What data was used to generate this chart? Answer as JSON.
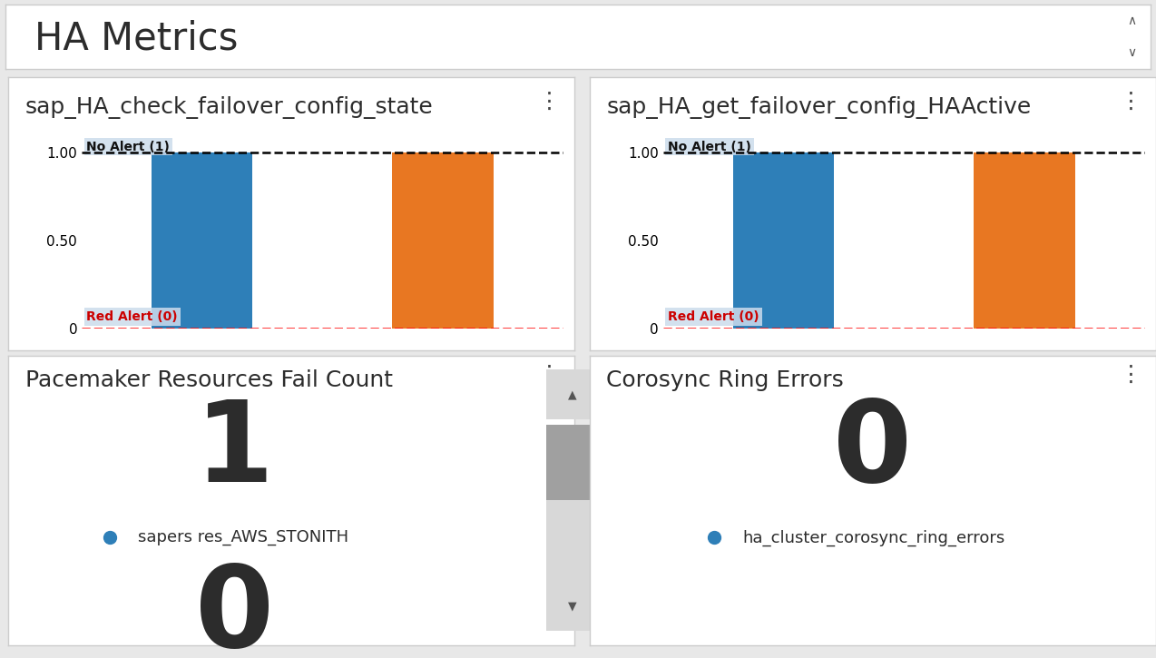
{
  "title": "HA Metrics",
  "title_fontsize": 30,
  "title_color": "#2c2c2c",
  "background_color": "#e8e8e8",
  "panel_background": "#ffffff",
  "panel1_title": "sap_HA_check_failover_config_state",
  "panel2_title": "sap_HA_get_failover_config_HAActive",
  "panel3_title": "Pacemaker Resources Fail Count",
  "panel4_title": "Corosync Ring Errors",
  "chart_blue": "#2e7fb8",
  "chart_orange": "#e87722",
  "no_alert_label": "No Alert (1)",
  "red_alert_label": "Red Alert (0)",
  "no_alert_color": "#111111",
  "red_alert_color": "#cc0000",
  "panel3_value": "1",
  "panel3_sub_value": "0",
  "panel3_legend_color": "#2e7fb8",
  "panel3_legend_label": "sapers res_AWS_STONITH",
  "panel4_value": "0",
  "panel4_legend_color": "#2e7fb8",
  "panel4_legend_label": "ha_cluster_corosync_ring_errors",
  "value_fontsize": 90,
  "legend_fontsize": 13,
  "panel_title_fontsize": 18,
  "bar_label_fontsize": 10,
  "ytick_fontsize": 11,
  "dots_color": "#444444",
  "label_bg_color": "#ccdcec",
  "border_color": "#cccccc",
  "scroll_bg": "#d8d8d8",
  "scroll_thumb": "#a0a0a0",
  "arrow_color": "#555555"
}
